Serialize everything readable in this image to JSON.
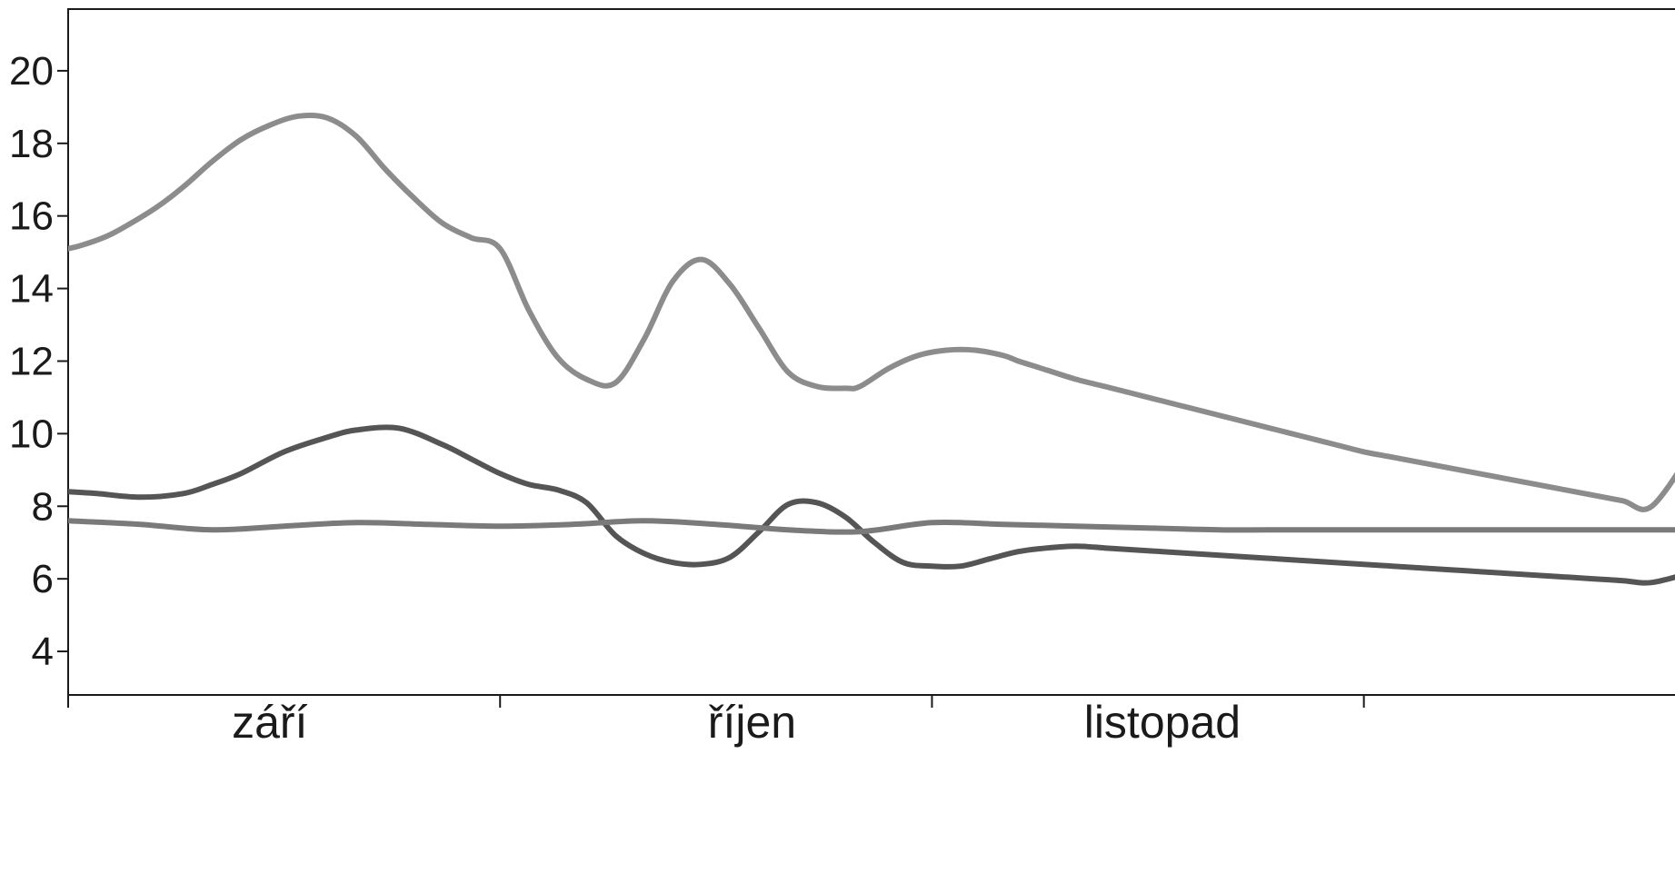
{
  "chart_data": {
    "type": "line",
    "title": "",
    "xlabel": "",
    "ylabel": "",
    "ylim": [
      2.8,
      21.7
    ],
    "xlim": [
      0,
      113
    ],
    "yticks": [
      4,
      6,
      8,
      10,
      12,
      14,
      16,
      18,
      20
    ],
    "month_labels": [
      "září",
      "říjen",
      "listopad"
    ],
    "month_label_pos": [
      14,
      47.5,
      76
    ],
    "month_ticks": [
      0,
      30,
      60,
      90
    ],
    "grid": false,
    "series": [
      {
        "color": "#8c8c8c",
        "x": [
          0,
          1,
          3,
          6,
          8,
          10,
          12,
          14,
          16,
          18,
          20,
          22,
          24,
          26,
          28,
          30,
          32,
          34,
          36,
          38,
          40,
          42,
          44,
          46,
          48,
          50,
          52,
          54,
          55,
          57,
          59,
          61,
          63,
          65,
          66,
          68,
          70,
          72,
          74,
          76,
          78,
          80,
          82,
          84,
          86,
          88,
          90,
          92,
          94,
          96,
          98,
          100,
          102,
          104,
          106,
          108,
          110,
          113
        ],
        "y": [
          15.1,
          15.2,
          15.5,
          16.2,
          16.8,
          17.5,
          18.1,
          18.5,
          18.75,
          18.7,
          18.2,
          17.3,
          16.5,
          15.8,
          15.4,
          15.1,
          13.4,
          12.1,
          11.5,
          11.4,
          12.6,
          14.2,
          14.8,
          14.1,
          12.9,
          11.7,
          11.3,
          11.25,
          11.3,
          11.8,
          12.15,
          12.3,
          12.3,
          12.15,
          12.0,
          11.75,
          11.5,
          11.3,
          11.1,
          10.9,
          10.7,
          10.5,
          10.3,
          10.1,
          9.9,
          9.7,
          9.5,
          9.35,
          9.2,
          9.05,
          8.9,
          8.75,
          8.6,
          8.45,
          8.3,
          8.15,
          8.0,
          9.65
        ]
      },
      {
        "color": "#555555",
        "x": [
          0,
          2,
          5,
          8,
          10,
          12,
          15,
          18,
          20,
          23,
          26,
          28,
          30,
          32,
          34,
          36,
          38,
          40,
          42,
          44,
          46,
          48,
          50,
          52,
          54,
          56,
          58,
          60,
          62,
          64,
          66,
          68,
          70,
          72,
          74,
          76,
          78,
          80,
          82,
          84,
          86,
          88,
          90,
          92,
          94,
          96,
          98,
          100,
          102,
          104,
          106,
          108,
          110,
          113
        ],
        "y": [
          8.4,
          8.35,
          8.25,
          8.35,
          8.6,
          8.9,
          9.5,
          9.9,
          10.1,
          10.15,
          9.7,
          9.3,
          8.9,
          8.6,
          8.45,
          8.1,
          7.2,
          6.7,
          6.45,
          6.4,
          6.6,
          7.3,
          8.05,
          8.1,
          7.7,
          7.0,
          6.45,
          6.35,
          6.35,
          6.55,
          6.75,
          6.85,
          6.9,
          6.85,
          6.8,
          6.75,
          6.7,
          6.65,
          6.6,
          6.55,
          6.5,
          6.45,
          6.4,
          6.35,
          6.3,
          6.25,
          6.2,
          6.15,
          6.1,
          6.05,
          6.0,
          5.95,
          5.9,
          6.2
        ]
      },
      {
        "color": "#7a7a7a",
        "x": [
          0,
          5,
          10,
          15,
          20,
          25,
          30,
          35,
          40,
          45,
          50,
          55,
          60,
          65,
          70,
          75,
          80,
          85,
          90,
          95,
          100,
          105,
          110,
          113
        ],
        "y": [
          7.6,
          7.5,
          7.35,
          7.45,
          7.55,
          7.5,
          7.45,
          7.5,
          7.6,
          7.5,
          7.35,
          7.3,
          7.55,
          7.5,
          7.45,
          7.4,
          7.35,
          7.35,
          7.35,
          7.35,
          7.35,
          7.35,
          7.35,
          7.35
        ]
      }
    ]
  }
}
